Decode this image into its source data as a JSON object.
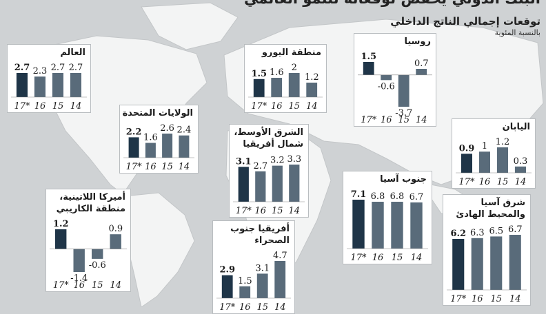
{
  "header": {
    "title": "البنك الدولي يخفض توقعاته للنمو العالمي",
    "subtitle": "توقعات إجمالي الناتج الداخلي",
    "unit": "بالنسبة المئوية"
  },
  "colors": {
    "highlight_bar": "#1f3548",
    "bar": "#596b7a",
    "map_land": "#f3f4f4",
    "map_sea": "#cfd2d4"
  },
  "chart_data": [
    {
      "type": "bar",
      "title": "العالم",
      "categories": [
        "17*",
        "16",
        "15",
        "14"
      ],
      "values": [
        2.7,
        2.3,
        2.7,
        2.7
      ],
      "highlight": "17*"
    },
    {
      "type": "bar",
      "title": "منطقة اليورو",
      "categories": [
        "17*",
        "16",
        "15",
        "14"
      ],
      "values": [
        1.5,
        1.6,
        2,
        1.2
      ],
      "highlight": "17*"
    },
    {
      "type": "bar",
      "title": "روسيا",
      "categories": [
        "17*",
        "16",
        "15",
        "14"
      ],
      "values": [
        1.5,
        -0.6,
        -3.7,
        0.7
      ],
      "highlight": "17*"
    },
    {
      "type": "bar",
      "title": "الولايات المتحدة",
      "categories": [
        "17*",
        "16",
        "15",
        "14"
      ],
      "values": [
        2.2,
        1.6,
        2.6,
        2.4
      ],
      "highlight": "17*"
    },
    {
      "type": "bar",
      "title": "الشرق الأوسط، شمال أفريقيا",
      "categories": [
        "17*",
        "16",
        "15",
        "14"
      ],
      "values": [
        3.1,
        2.7,
        3.2,
        3.3
      ],
      "highlight": "17*"
    },
    {
      "type": "bar",
      "title": "اليابان",
      "categories": [
        "17*",
        "16",
        "15",
        "14"
      ],
      "values": [
        0.9,
        1,
        1.2,
        0.3
      ],
      "highlight": "17*"
    },
    {
      "type": "bar",
      "title": "جنوب آسيا",
      "categories": [
        "17*",
        "16",
        "15",
        "14"
      ],
      "values": [
        7.1,
        6.8,
        6.8,
        6.7
      ],
      "highlight": "17*"
    },
    {
      "type": "bar",
      "title": "أميركا اللاتينية، منطقة الكاريبي",
      "categories": [
        "17*",
        "16",
        "15",
        "14"
      ],
      "values": [
        1.2,
        -1.4,
        -0.6,
        0.9
      ],
      "highlight": "17*"
    },
    {
      "type": "bar",
      "title": "أفريقيا جنوب الصحراء",
      "categories": [
        "17*",
        "16",
        "15",
        "14"
      ],
      "values": [
        2.9,
        1.5,
        3.1,
        4.7
      ],
      "highlight": "17*"
    },
    {
      "type": "bar",
      "title": "شرق آسيا والمحيط الهادئ",
      "categories": [
        "17*",
        "16",
        "15",
        "14"
      ],
      "values": [
        6.2,
        6.3,
        6.5,
        6.7
      ],
      "highlight": "17*"
    }
  ]
}
